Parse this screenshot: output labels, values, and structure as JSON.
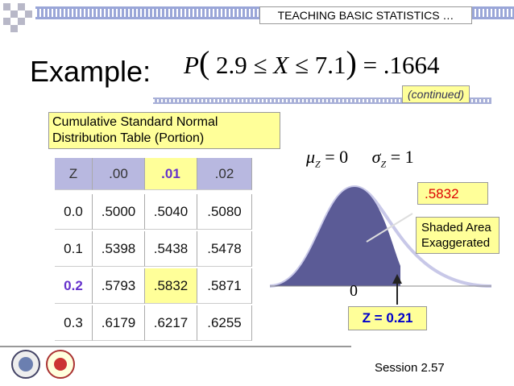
{
  "header": {
    "text": "TEACHING BASIC STATISTICS …"
  },
  "title": "Example:",
  "formula": {
    "p": "P",
    "open": "(",
    "lower": "2.9",
    "le1": "≤",
    "x": "X",
    "le2": "≤",
    "upper": "7.1",
    "close": ")",
    "eq": "=",
    "result": ".1664"
  },
  "continued": "(continued)",
  "table": {
    "caption": "Cumulative Standard Normal Distribution Table (Portion)",
    "header": [
      "Z",
      ".00",
      ".01",
      ".02"
    ],
    "rows": [
      [
        "0.0",
        ".5000",
        ".5040",
        ".5080"
      ],
      [
        "0.1",
        ".5398",
        ".5438",
        ".5478"
      ],
      [
        "0.2",
        ".5793",
        ".5832",
        ".5871"
      ],
      [
        "0.3",
        ".6179",
        ".6217",
        ".6255"
      ]
    ]
  },
  "params": {
    "mu": "μ",
    "mu_sub": "Z",
    "mu_eq": "= 0",
    "sigma": "σ",
    "sigma_sub": "Z",
    "sigma_eq": "= 1"
  },
  "area_value": ".5832",
  "shaded_note": "Shaded Area Exaggerated",
  "zero": "0",
  "z_label": "Z = 0.21",
  "footer": "Session 2.57"
}
